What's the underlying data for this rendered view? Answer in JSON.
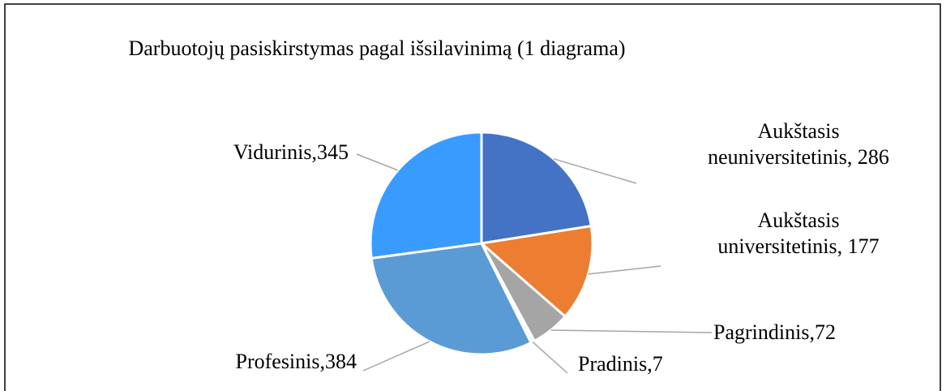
{
  "chart_data": {
    "type": "pie",
    "title": "Darbuotojų pasiskirstymas pagal išsilavinimą (1 diagrama)",
    "labels": [
      "Aukštasis neuniversitetinis, 286",
      "Aukštasis universitetinis, 177",
      "Pagrindinis,72",
      "Pradinis,7",
      "Profesinis,384",
      "Vidurinis,345"
    ],
    "values": [
      286,
      177,
      72,
      7,
      384,
      345
    ],
    "colors": [
      "#4472c4",
      "#ed7d31",
      "#a5a5a5",
      "#f2f2f2",
      "#5b9bd5",
      "#3a9bff"
    ]
  }
}
